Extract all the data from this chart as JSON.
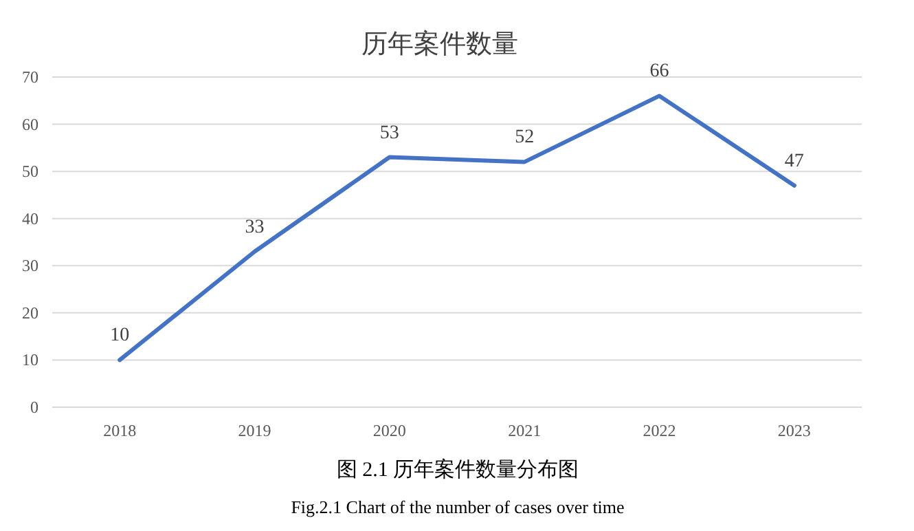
{
  "chart_data": {
    "type": "line",
    "title": "历年案件数量",
    "categories": [
      "2018",
      "2019",
      "2020",
      "2021",
      "2022",
      "2023"
    ],
    "series": [
      {
        "color": "#4472c4",
        "values": [
          10,
          33,
          53,
          52,
          66,
          47
        ]
      }
    ],
    "ylim": [
      0,
      70
    ],
    "yticks": [
      0,
      10,
      20,
      30,
      40,
      50,
      60,
      70
    ],
    "grid": "y",
    "data_labels": true,
    "marker": "none",
    "line_style": "solid",
    "annotations": [
      "图 2.1  历年案件数量分布图",
      "Fig.2.1 Chart of the number of cases over time"
    ]
  }
}
